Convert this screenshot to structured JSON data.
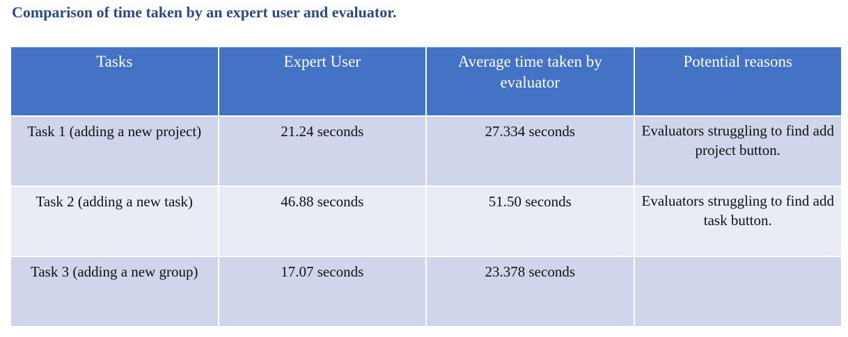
{
  "title": "Comparison of time taken by an expert user and evaluator.",
  "table": {
    "headers": [
      "Tasks",
      "Expert User",
      "Average time taken by evaluator",
      "Potential reasons"
    ],
    "rows": [
      {
        "task": "Task 1 (adding a new project)",
        "expert": "21.24 seconds",
        "average": "27.334 seconds",
        "reason": "Evaluators struggling to find add project button."
      },
      {
        "task": "Task 2 (adding a new task)",
        "expert": "46.88 seconds",
        "average": "51.50 seconds",
        "reason": "Evaluators struggling to find add task button."
      },
      {
        "task": "Task 3 (adding a new group)",
        "expert": "17.07 seconds",
        "average": "23.378 seconds",
        "reason": ""
      }
    ]
  },
  "colors": {
    "header_bg": "#4472c4",
    "row_odd_bg": "#cfd5ea",
    "row_even_bg": "#e9ebf5",
    "title_color": "#2a4a8a"
  }
}
